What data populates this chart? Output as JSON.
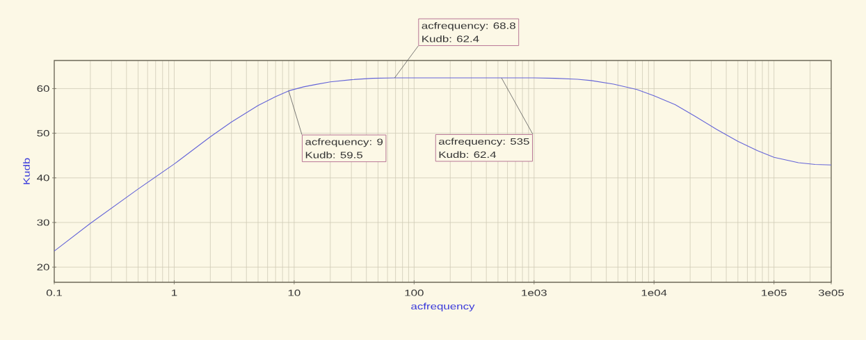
{
  "chart_data": {
    "type": "line",
    "xlabel": "acfrequency",
    "ylabel": "Kudb",
    "x": [
      0.1,
      0.2,
      0.5,
      1,
      2,
      3,
      5,
      7,
      9,
      12,
      15,
      20,
      30,
      45,
      68.8,
      100,
      200,
      535,
      1000,
      1500,
      2300,
      3000,
      4600,
      7200,
      10000,
      15000,
      22000,
      33000,
      50000,
      73000,
      100000,
      160000,
      220000,
      300000
    ],
    "values": [
      23.6,
      29.8,
      37.5,
      43.1,
      49.2,
      52.5,
      56.2,
      58.2,
      59.5,
      60.4,
      60.9,
      61.5,
      62.0,
      62.3,
      62.4,
      62.4,
      62.4,
      62.4,
      62.4,
      62.3,
      62.1,
      61.8,
      61.0,
      59.8,
      58.4,
      56.4,
      53.8,
      50.9,
      48.2,
      46.1,
      44.6,
      43.4,
      43.0,
      42.9
    ],
    "color": "#6464d8",
    "log": "x",
    "xlim": [
      0.1,
      300000
    ],
    "ylim": [
      16.6,
      66.3
    ],
    "xticks": [
      0.1,
      1,
      10,
      100,
      {
        "value": 1000,
        "label": "1e03"
      },
      {
        "value": 10000,
        "label": "1e04"
      },
      {
        "value": 100000,
        "label": "1e05"
      },
      {
        "value": 300000,
        "label": "3e05"
      }
    ],
    "yticks": [
      20,
      30,
      40,
      50,
      60
    ],
    "grid": true,
    "annotations": [
      {
        "text": "acfrequency: 68.8 Kudb: 62.4",
        "x": 68.8,
        "y": 62.4
      },
      {
        "text": "acfrequency: 9 Kudb: 59.5",
        "x": 9,
        "y": 59.5
      },
      {
        "text": "acfrequency: 535 Kudb: 62.4",
        "x": 535,
        "y": 62.4
      }
    ]
  }
}
